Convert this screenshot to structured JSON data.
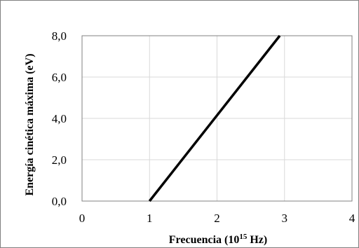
{
  "chart_data": {
    "type": "line",
    "title": "",
    "xlabel": "Frecuencia (10",
    "xlabel_sup": "15",
    "xlabel_end": " Hz)",
    "ylabel": "Energía cinética máxima (eV)",
    "xlim": [
      0,
      4
    ],
    "ylim": [
      0,
      8
    ],
    "x_ticks": [
      "0",
      "1",
      "2",
      "3",
      "4"
    ],
    "y_ticks": [
      "0,0",
      "2,0",
      "4,0",
      "6,0",
      "8,0"
    ],
    "grid": true,
    "legend": "none",
    "series": [
      {
        "x": [
          1.0,
          2.93
        ],
        "y": [
          0.0,
          8.0
        ]
      }
    ],
    "colors": {
      "line": "#000000",
      "grid": "#d9d9d9",
      "frame": "#808080"
    }
  }
}
